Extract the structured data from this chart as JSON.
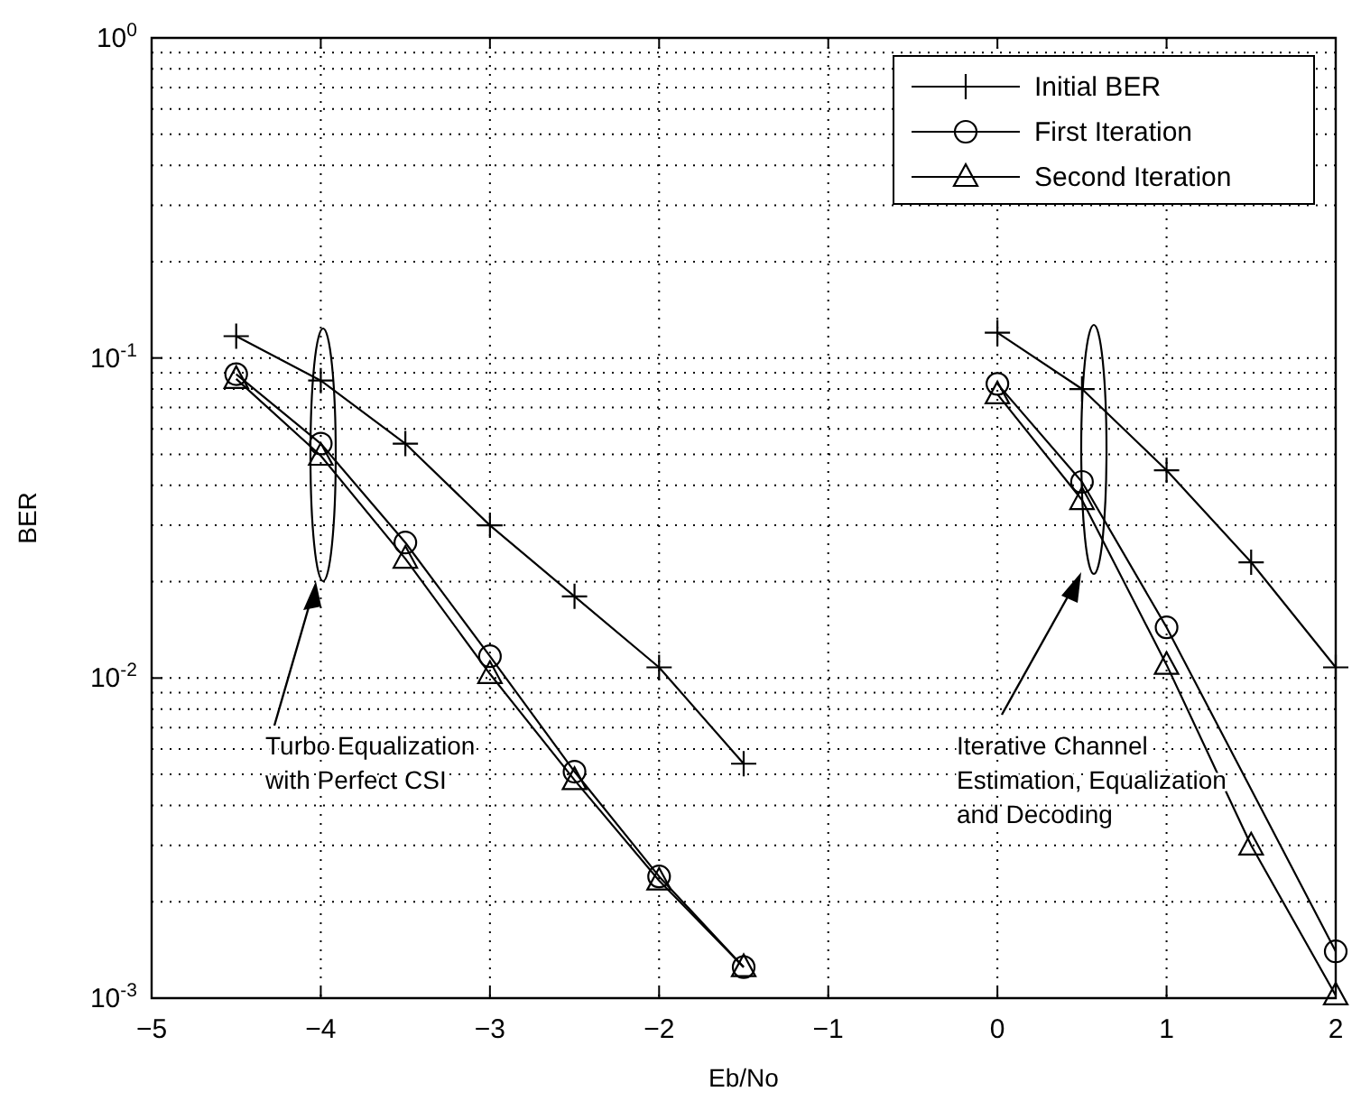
{
  "chart_data": {
    "type": "line",
    "xlabel": "Eb/No",
    "ylabel": "BER",
    "log": "y",
    "grid": true,
    "legend": "top right",
    "line_style": "solid",
    "xlim": [
      -5,
      2
    ],
    "xticks": [
      -5,
      -4,
      -3,
      -2,
      -1,
      0,
      1,
      2
    ],
    "ylim": [
      0.001,
      1
    ],
    "yticks": [
      {
        "value": 0.001,
        "label": "10$^{-3}$"
      },
      {
        "value": 0.01,
        "label": "10$^{-2}$"
      },
      {
        "value": 0.1,
        "label": "10$^{-1}$"
      },
      {
        "value": 1,
        "label": "10$^{0}$"
      }
    ],
    "series": [
      {
        "name": "Initial BER",
        "color": "#000000",
        "marker": "cross",
        "x": [
          -4.5,
          -4,
          -3.5,
          -3,
          -2.5,
          -2,
          -1.5,
          -1,
          0,
          0.5,
          1,
          1.5,
          2
        ],
        "values": [
          0.117,
          0.085,
          0.054,
          0.03,
          0.018,
          0.0108,
          0.0054,
          null,
          0.12,
          0.08,
          0.0446,
          0.023,
          0.0108
        ]
      },
      {
        "name": "First Iteration",
        "color": "#000000",
        "marker": "circle",
        "x": [
          -4.5,
          -4,
          -3.5,
          -3,
          -2.5,
          -2,
          -1.5,
          -1,
          0,
          0.5,
          1,
          2
        ],
        "values": [
          0.089,
          0.054,
          0.0265,
          0.0117,
          0.0051,
          0.0024,
          0.00125,
          null,
          0.083,
          0.041,
          0.0144,
          0.0014
        ]
      },
      {
        "name": "Second Iteration",
        "color": "#000000",
        "marker": "triangle",
        "x": [
          -4.5,
          -4,
          -3.5,
          -3,
          -2.5,
          -2,
          -1.5,
          -1,
          0,
          0.5,
          1,
          1.5,
          2
        ],
        "values": [
          0.086,
          0.0495,
          0.0236,
          0.0103,
          0.0048,
          0.00233,
          0.00125,
          null,
          0.077,
          0.036,
          0.011,
          0.003,
          0.00102
        ]
      }
    ],
    "annotations": [
      "Turbo Equalization\nwith Perfect CSI",
      "Iterative Channel\nEstimation, Equalization\nand Decoding"
    ]
  }
}
